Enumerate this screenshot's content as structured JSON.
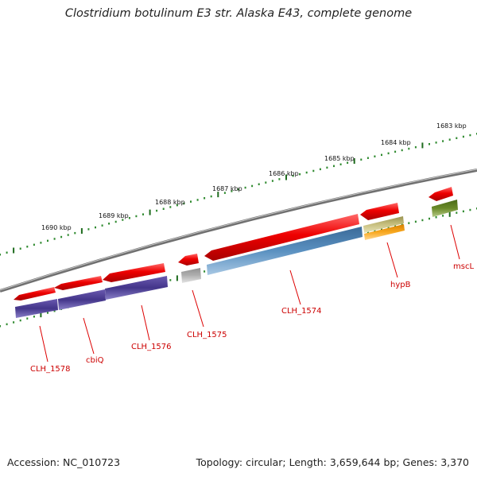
{
  "title": "Clostridium botulinum E3 str. Alaska E43, complete genome",
  "footer": {
    "accession": "Accession: NC_010723",
    "summary": "Topology: circular; Length: 3,659,644 bp; Genes: 3,370"
  },
  "colors": {
    "backbone": "#7a7a7a",
    "tick_dot": "#2f8a2f",
    "tick_major": "#1e6b1e",
    "cds": "#ee0000",
    "transporter": "#4a3a8e",
    "gray": "#a9a9a9",
    "steel_blue": "#4a7fb0",
    "tan": "#b8b070",
    "orange": "#f0a020",
    "olive": "#6a8a28",
    "label": "#cc0000"
  },
  "kbp_labels": [
    "1683 kbp",
    "1684 kbp",
    "1685 kbp",
    "1686 kbp",
    "1687 kbp",
    "1688 kbp",
    "1689 kbp",
    "1690 kbp"
  ],
  "gene_labels": [
    "CLH_1578",
    "cbiQ",
    "CLH_1576",
    "CLH_1575",
    "CLH_1574",
    "hypB",
    "mscL"
  ]
}
